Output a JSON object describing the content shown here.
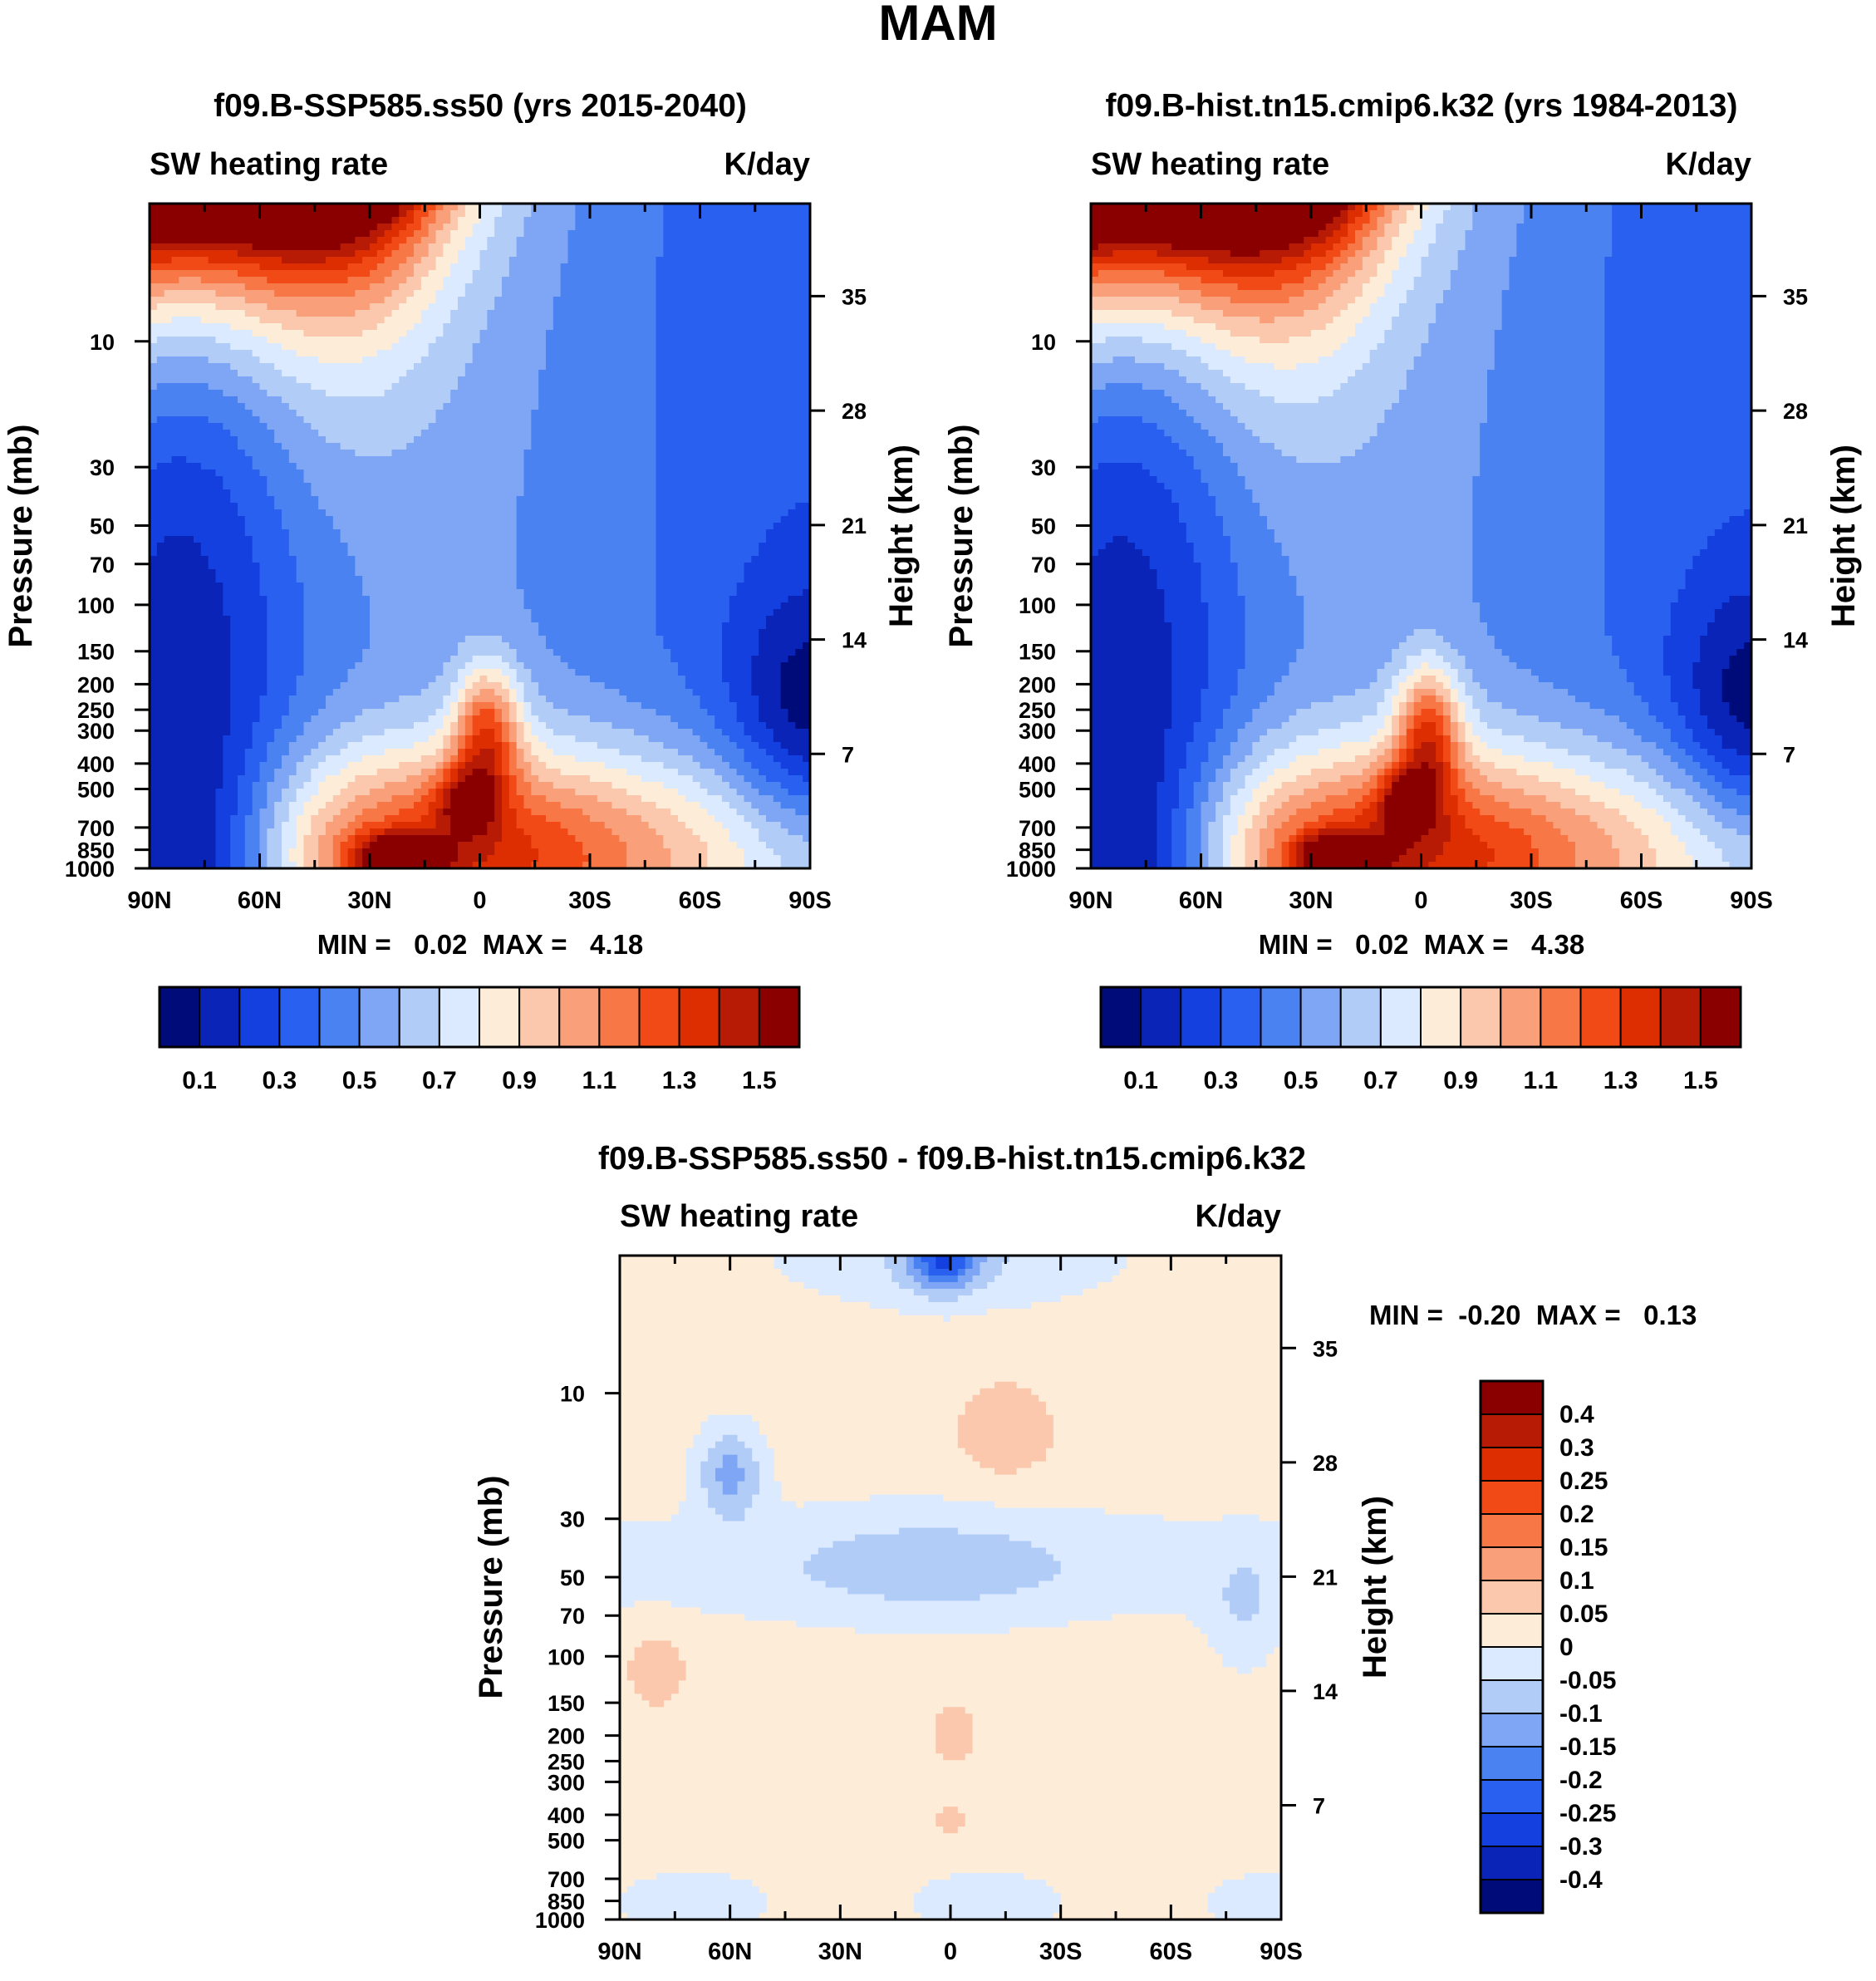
{
  "figure": {
    "title": "MAM"
  },
  "colors": {
    "abs": [
      "#000b7a",
      "#0b24b8",
      "#1540e0",
      "#2a60f0",
      "#4a82f2",
      "#7ea6f4",
      "#b2ccf8",
      "#dceaff",
      "#fdecd8",
      "#fbc8ad",
      "#f9a07a",
      "#f77746",
      "#f24a16",
      "#dc2e00",
      "#b71b05",
      "#8a0000"
    ],
    "diff": [
      "#000b7a",
      "#0b24b8",
      "#1540e0",
      "#2a60f0",
      "#4a82f2",
      "#7ea6f4",
      "#b2ccf8",
      "#dceaff",
      "#fdecd8",
      "#fbc8ad",
      "#f9a07a",
      "#f77746",
      "#f24a16",
      "#dc2e00",
      "#b71b05",
      "#8a0000"
    ]
  },
  "chart_data": [
    {
      "type": "heatmap",
      "id": "ssp585",
      "title": "f09.B-SSP585.ss50 (yrs 2015-2040)",
      "left_label": "SW heating rate",
      "right_label": "K/day",
      "xlabel": "",
      "ylabel": "Pressure (mb)",
      "y2label": "Height (km)",
      "x_ticks": [
        "90N",
        "60N",
        "30N",
        "0",
        "30S",
        "60S",
        "90S"
      ],
      "y_ticks": [
        "10",
        "30",
        "50",
        "70",
        "100",
        "150",
        "200",
        "250",
        "300",
        "400",
        "500",
        "700",
        "850",
        "1000"
      ],
      "y_tick_values": [
        10,
        30,
        50,
        70,
        100,
        150,
        200,
        250,
        300,
        400,
        500,
        700,
        850,
        1000
      ],
      "y2_ticks": [
        "35",
        "28",
        "21",
        "14",
        "7"
      ],
      "y2_tick_values": [
        35,
        28,
        21,
        14,
        7
      ],
      "ylim": [
        3,
        1000
      ],
      "xlim": [
        90,
        -90
      ],
      "minmax": "MIN =   0.02  MAX =   4.18",
      "min": 0.02,
      "max": 4.18,
      "colorbar_labels": [
        "0.1",
        "0.3",
        "0.5",
        "0.7",
        "0.9",
        "1.1",
        "1.3",
        "1.5"
      ],
      "levels": [
        0.1,
        0.2,
        0.3,
        0.4,
        0.5,
        0.6,
        0.7,
        0.8,
        0.9,
        1.0,
        1.1,
        1.2,
        1.3,
        1.4,
        1.5
      ]
    },
    {
      "type": "heatmap",
      "id": "hist",
      "title": "f09.B-hist.tn15.cmip6.k32 (yrs 1984-2013)",
      "left_label": "SW heating rate",
      "right_label": "K/day",
      "xlabel": "",
      "ylabel": "Pressure (mb)",
      "y2label": "Height (km)",
      "x_ticks": [
        "90N",
        "60N",
        "30N",
        "0",
        "30S",
        "60S",
        "90S"
      ],
      "y_ticks": [
        "10",
        "30",
        "50",
        "70",
        "100",
        "150",
        "200",
        "250",
        "300",
        "400",
        "500",
        "700",
        "850",
        "1000"
      ],
      "y_tick_values": [
        10,
        30,
        50,
        70,
        100,
        150,
        200,
        250,
        300,
        400,
        500,
        700,
        850,
        1000
      ],
      "y2_ticks": [
        "35",
        "28",
        "21",
        "14",
        "7"
      ],
      "y2_tick_values": [
        35,
        28,
        21,
        14,
        7
      ],
      "ylim": [
        3,
        1000
      ],
      "xlim": [
        90,
        -90
      ],
      "minmax": "MIN =   0.02  MAX =   4.38",
      "min": 0.02,
      "max": 4.38,
      "colorbar_labels": [
        "0.1",
        "0.3",
        "0.5",
        "0.7",
        "0.9",
        "1.1",
        "1.3",
        "1.5"
      ],
      "levels": [
        0.1,
        0.2,
        0.3,
        0.4,
        0.5,
        0.6,
        0.7,
        0.8,
        0.9,
        1.0,
        1.1,
        1.2,
        1.3,
        1.4,
        1.5
      ]
    },
    {
      "type": "heatmap",
      "id": "diff",
      "title": "f09.B-SSP585.ss50 - f09.B-hist.tn15.cmip6.k32",
      "left_label": "SW heating rate",
      "right_label": "K/day",
      "xlabel": "",
      "ylabel": "Pressure (mb)",
      "y2label": "Height (km)",
      "x_ticks": [
        "90N",
        "60N",
        "30N",
        "0",
        "30S",
        "60S",
        "90S"
      ],
      "y_ticks": [
        "10",
        "30",
        "50",
        "70",
        "100",
        "150",
        "200",
        "250",
        "300",
        "400",
        "500",
        "700",
        "850",
        "1000"
      ],
      "y_tick_values": [
        10,
        30,
        50,
        70,
        100,
        150,
        200,
        250,
        300,
        400,
        500,
        700,
        850,
        1000
      ],
      "y2_ticks": [
        "35",
        "28",
        "21",
        "14",
        "7"
      ],
      "y2_tick_values": [
        35,
        28,
        21,
        14,
        7
      ],
      "ylim": [
        3,
        1000
      ],
      "xlim": [
        90,
        -90
      ],
      "minmax": "MIN =  -0.20  MAX =   0.13",
      "min": -0.2,
      "max": 0.13,
      "colorbar_labels": [
        "0.4",
        "0.3",
        "0.25",
        "0.2",
        "0.15",
        "0.1",
        "0.05",
        "0",
        "-0.05",
        "-0.1",
        "-0.15",
        "-0.2",
        "-0.25",
        "-0.3",
        "-0.4"
      ],
      "levels": [
        -0.4,
        -0.3,
        -0.25,
        -0.2,
        -0.15,
        -0.1,
        -0.05,
        0,
        0.05,
        0.1,
        0.15,
        0.2,
        0.25,
        0.3,
        0.4
      ]
    }
  ]
}
